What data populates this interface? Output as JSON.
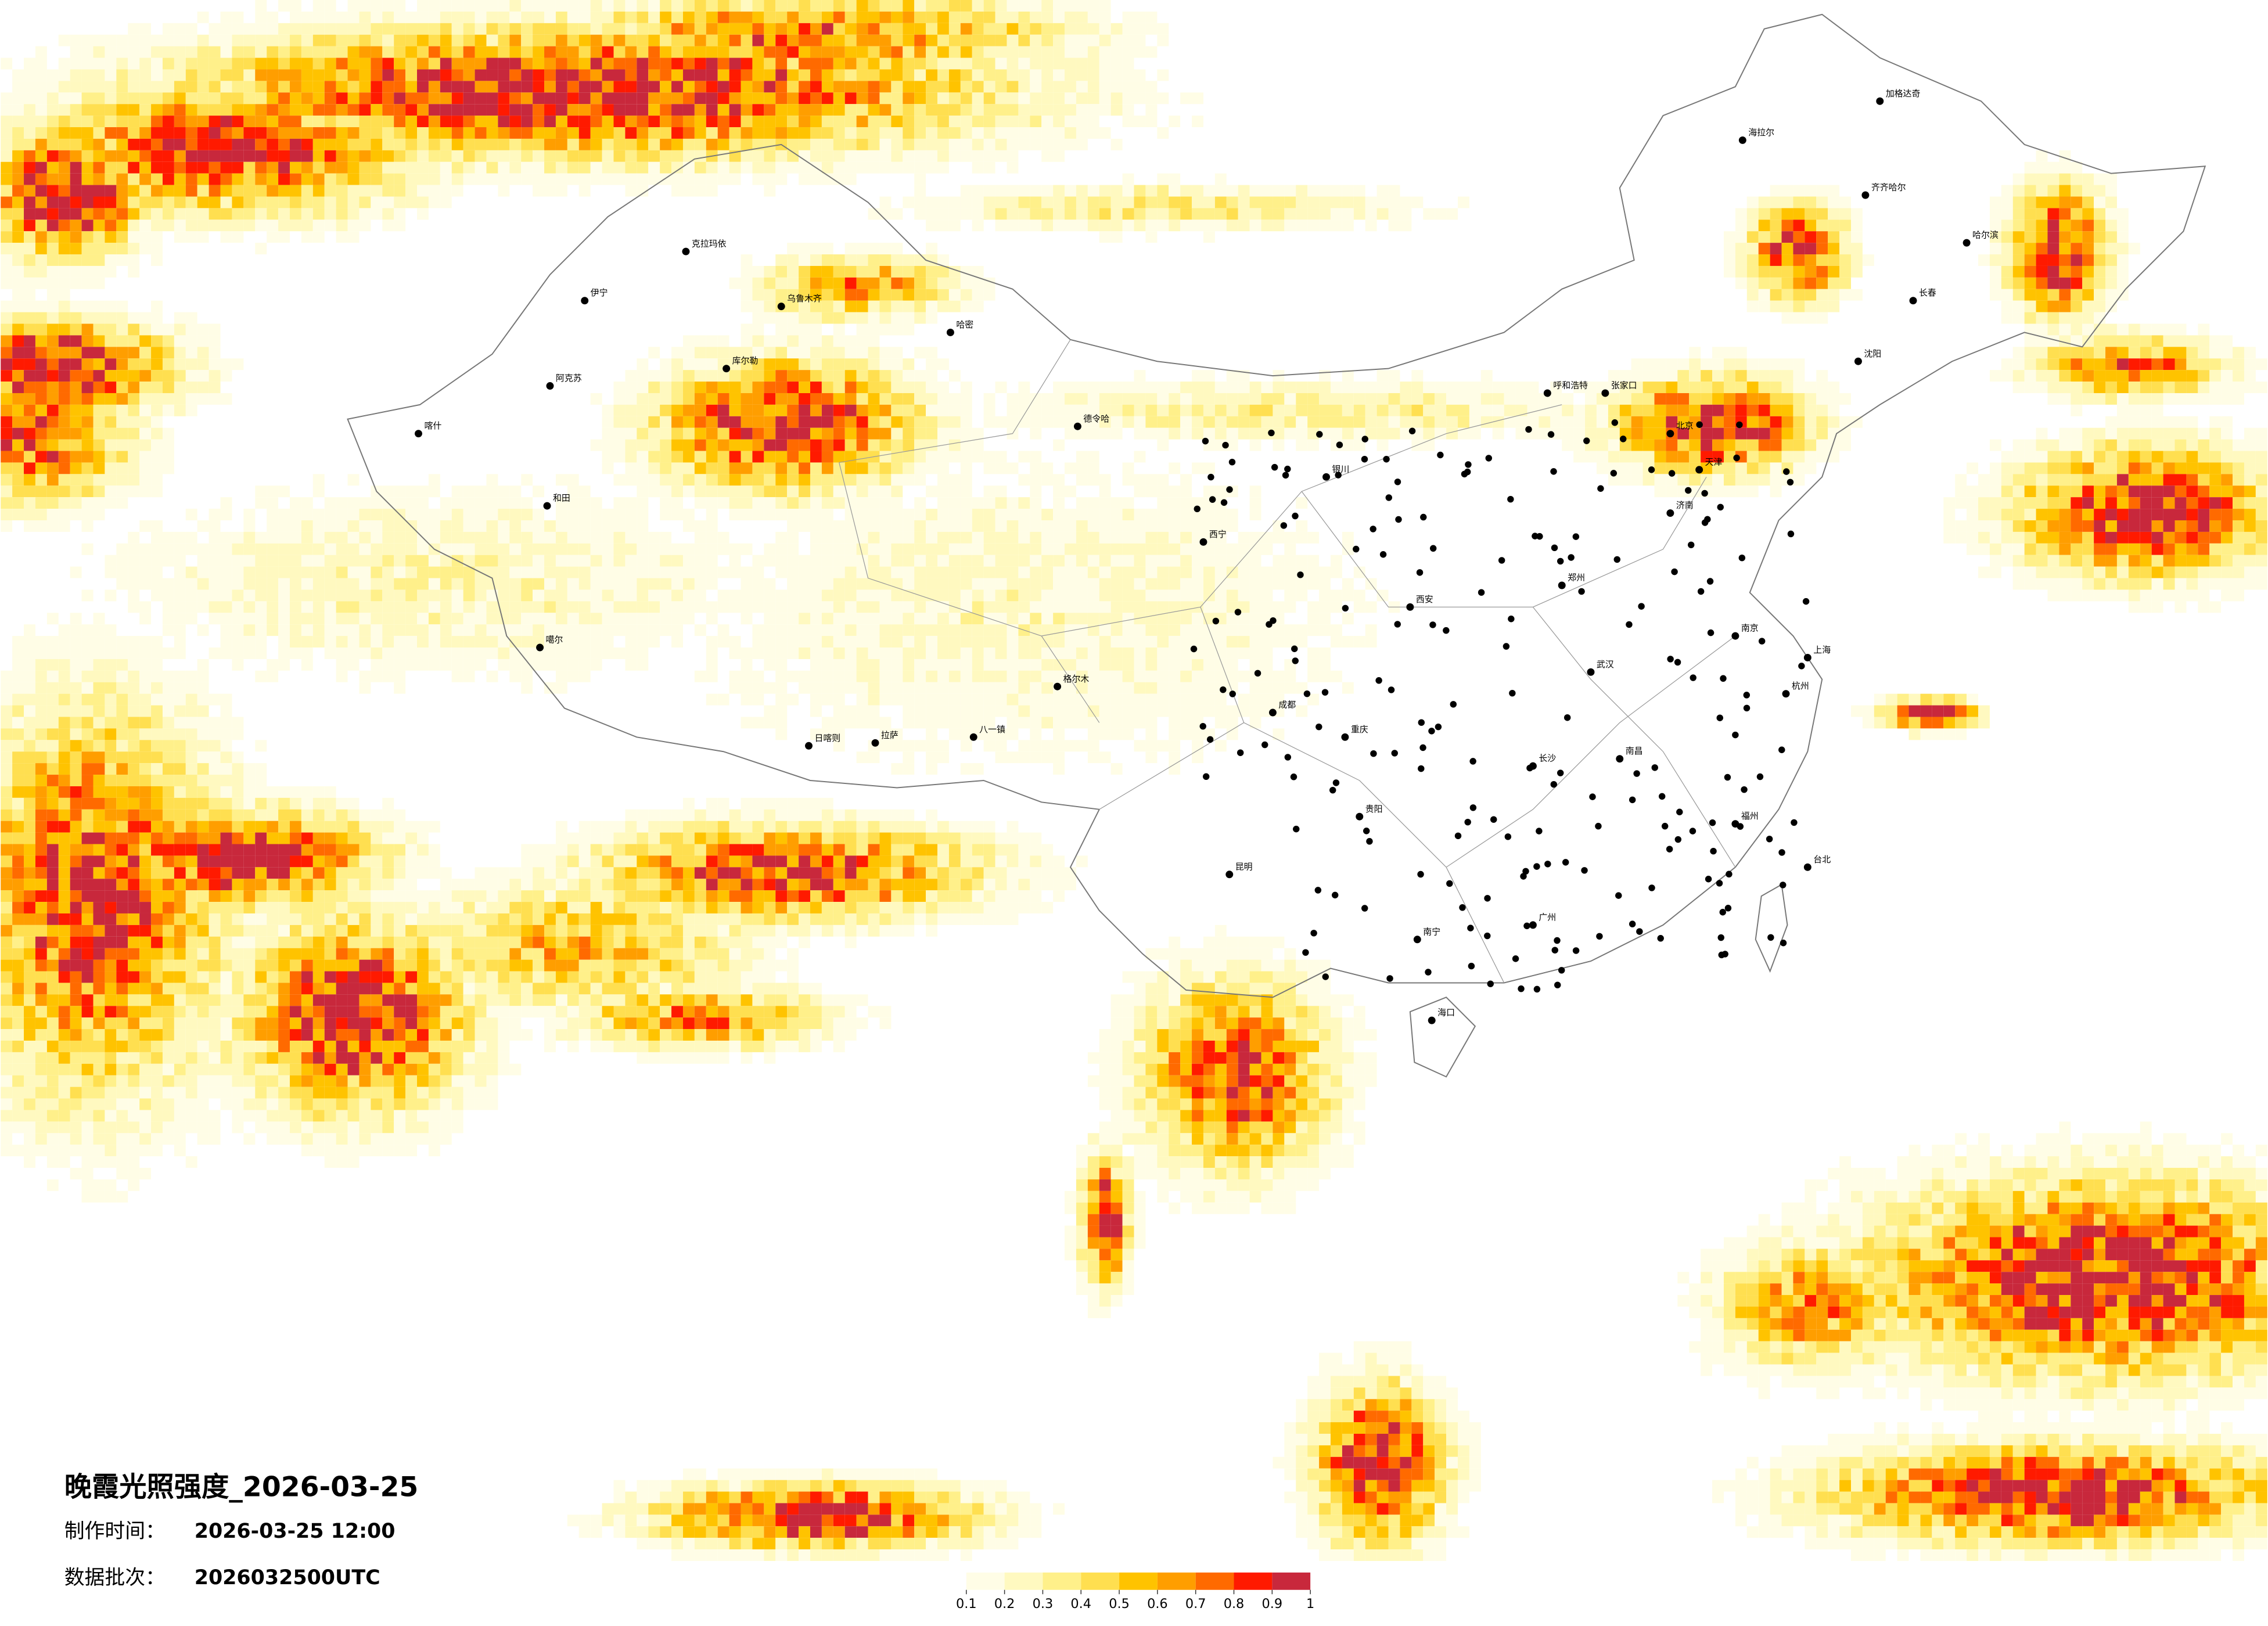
{
  "title": "晚霞光照强度_2026-03-25",
  "info": [
    {
      "label": "制作时间：",
      "value": "2026-03-25 12:00"
    },
    {
      "label": "数据批次：",
      "value": "2026032500UTC"
    }
  ],
  "colorbar": {
    "colors": [
      "#fffde6",
      "#fff9c0",
      "#fff08a",
      "#ffdf50",
      "#ffc300",
      "#ff9e00",
      "#ff6a00",
      "#ff1a00",
      "#c8283c"
    ],
    "ticks": [
      0.1,
      0.2,
      0.3,
      0.4,
      0.5,
      0.6,
      0.7,
      0.8,
      0.9,
      1
    ]
  },
  "cities": [
    "乌鲁木齐",
    "克拉玛依",
    "伊宁",
    "阿克苏",
    "喀什",
    "和田",
    "库尔勒",
    "哈密",
    "拉萨",
    "日喀则",
    "格尔木",
    "西宁",
    "银川",
    "呼和浩特",
    "北京",
    "天津",
    "哈尔滨",
    "长春",
    "沈阳",
    "济南",
    "郑州",
    "西安",
    "成都",
    "重庆",
    "武汉",
    "南京",
    "上海",
    "杭州",
    "长沙",
    "南昌",
    "福州",
    "广州",
    "南宁",
    "昆明",
    "贵阳",
    "海口",
    "台北",
    "海拉尔",
    "加格达奇",
    "噶尔",
    "八一镇",
    "德令哈",
    "张家口",
    "齐齐哈尔"
  ]
}
